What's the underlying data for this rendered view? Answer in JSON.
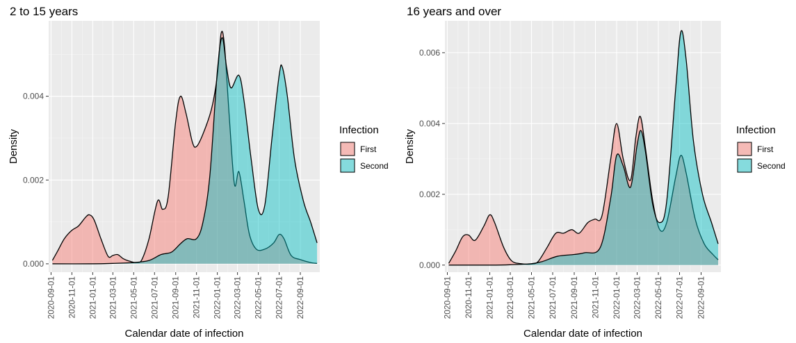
{
  "legend": {
    "title": "Infection",
    "items": [
      {
        "label": "First",
        "color": "#F8766D"
      },
      {
        "label": "Second",
        "color": "#00BFC4"
      }
    ]
  },
  "chart_data": [
    {
      "type": "area",
      "title": "2 to 15 years",
      "xlabel": "Calendar date of infection",
      "ylabel": "Density",
      "x_ticks": [
        "2020-09-01",
        "2020-11-01",
        "2021-01-01",
        "2021-03-01",
        "2021-05-01",
        "2021-07-01",
        "2021-09-01",
        "2021-11-01",
        "2022-01-01",
        "2022-03-01",
        "2022-05-01",
        "2022-07-01",
        "2022-09-01"
      ],
      "y_ticks": [
        "0.000",
        "0.002",
        "0.004"
      ],
      "xlim": [
        "2020-08-25",
        "2022-10-28"
      ],
      "ylim": [
        -0.0002,
        0.0058
      ],
      "y_tick_values": [
        0,
        0.002,
        0.004
      ],
      "grid": true,
      "legend_position": "right",
      "series": [
        {
          "name": "First",
          "color": "#F8766D",
          "points": [
            [
              "2020-09-05",
              8e-05
            ],
            [
              "2020-09-20",
              0.0003
            ],
            [
              "2020-10-10",
              0.0006
            ],
            [
              "2020-11-01",
              0.0008
            ],
            [
              "2020-11-20",
              0.0009
            ],
            [
              "2020-12-10",
              0.0011
            ],
            [
              "2020-12-22",
              0.00117
            ],
            [
              "2021-01-05",
              0.00105
            ],
            [
              "2021-01-25",
              0.0006
            ],
            [
              "2021-02-15",
              0.00018
            ],
            [
              "2021-03-01",
              0.0002
            ],
            [
              "2021-03-15",
              0.00022
            ],
            [
              "2021-04-01",
              0.00012
            ],
            [
              "2021-04-20",
              6e-05
            ],
            [
              "2021-05-10",
              3e-05
            ],
            [
              "2021-05-25",
              0.0001
            ],
            [
              "2021-06-15",
              0.0006
            ],
            [
              "2021-07-10",
              0.0015
            ],
            [
              "2021-07-25",
              0.0013
            ],
            [
              "2021-08-10",
              0.0016
            ],
            [
              "2021-09-01",
              0.0034
            ],
            [
              "2021-09-15",
              0.004
            ],
            [
              "2021-10-01",
              0.0036
            ],
            [
              "2021-10-20",
              0.0029
            ],
            [
              "2021-11-01",
              0.0028
            ],
            [
              "2021-11-20",
              0.0031
            ],
            [
              "2021-12-15",
              0.0037
            ],
            [
              "2022-01-01",
              0.0045
            ],
            [
              "2022-01-12",
              0.0055
            ],
            [
              "2022-01-22",
              0.0052
            ],
            [
              "2022-02-05",
              0.0035
            ],
            [
              "2022-02-20",
              0.0019
            ],
            [
              "2022-03-05",
              0.0022
            ],
            [
              "2022-03-20",
              0.0015
            ],
            [
              "2022-04-05",
              0.0007
            ],
            [
              "2022-04-25",
              0.00035
            ],
            [
              "2022-05-20",
              0.00035
            ],
            [
              "2022-06-15",
              0.0005
            ],
            [
              "2022-07-01",
              0.0007
            ],
            [
              "2022-07-15",
              0.0006
            ],
            [
              "2022-08-05",
              0.0002
            ],
            [
              "2022-09-01",
              0.0001
            ],
            [
              "2022-10-01",
              3e-05
            ],
            [
              "2022-10-20",
              1e-05
            ]
          ]
        },
        {
          "name": "Second",
          "color": "#00BFC4",
          "points": [
            [
              "2020-09-05",
              0
            ],
            [
              "2021-01-01",
              0
            ],
            [
              "2021-03-01",
              1e-05
            ],
            [
              "2021-05-01",
              3e-05
            ],
            [
              "2021-06-15",
              8e-05
            ],
            [
              "2021-07-20",
              0.00022
            ],
            [
              "2021-08-20",
              0.00028
            ],
            [
              "2021-09-15",
              0.00048
            ],
            [
              "2021-10-05",
              0.0006
            ],
            [
              "2021-11-01",
              0.0006
            ],
            [
              "2021-11-20",
              0.001
            ],
            [
              "2021-12-10",
              0.0021
            ],
            [
              "2022-01-01",
              0.0046
            ],
            [
              "2022-01-15",
              0.0054
            ],
            [
              "2022-01-28",
              0.0047
            ],
            [
              "2022-02-10",
              0.0042
            ],
            [
              "2022-03-05",
              0.0045
            ],
            [
              "2022-03-20",
              0.0039
            ],
            [
              "2022-04-10",
              0.0025
            ],
            [
              "2022-05-01",
              0.0013
            ],
            [
              "2022-05-20",
              0.0014
            ],
            [
              "2022-06-10",
              0.003
            ],
            [
              "2022-07-01",
              0.0045
            ],
            [
              "2022-07-10",
              0.0047
            ],
            [
              "2022-07-25",
              0.004
            ],
            [
              "2022-08-15",
              0.0025
            ],
            [
              "2022-09-10",
              0.0015
            ],
            [
              "2022-10-01",
              0.001
            ],
            [
              "2022-10-20",
              0.0005
            ]
          ]
        }
      ]
    },
    {
      "type": "area",
      "title": "16 years and over",
      "xlabel": "Calendar date of infection",
      "ylabel": "Density",
      "x_ticks": [
        "2020-09-01",
        "2020-11-01",
        "2021-01-01",
        "2021-03-01",
        "2021-05-01",
        "2021-07-01",
        "2021-09-01",
        "2021-11-01",
        "2022-01-01",
        "2022-03-01",
        "2022-05-01",
        "2022-07-01",
        "2022-09-01"
      ],
      "y_ticks": [
        "0.000",
        "0.002",
        "0.004",
        "0.006"
      ],
      "xlim": [
        "2020-08-25",
        "2022-10-28"
      ],
      "ylim": [
        -0.0002,
        0.0069
      ],
      "y_tick_values": [
        0,
        0.002,
        0.004,
        0.006
      ],
      "grid": true,
      "legend_position": "right",
      "series": [
        {
          "name": "First",
          "color": "#F8766D",
          "points": [
            [
              "2020-09-05",
              5e-05
            ],
            [
              "2020-09-25",
              0.0004
            ],
            [
              "2020-10-15",
              0.0008
            ],
            [
              "2020-11-01",
              0.00085
            ],
            [
              "2020-11-20",
              0.0007
            ],
            [
              "2020-12-15",
              0.0011
            ],
            [
              "2021-01-01",
              0.00142
            ],
            [
              "2021-01-15",
              0.0012
            ],
            [
              "2021-02-10",
              0.0005
            ],
            [
              "2021-03-05",
              0.00012
            ],
            [
              "2021-04-01",
              4e-05
            ],
            [
              "2021-05-01",
              3e-05
            ],
            [
              "2021-05-20",
              0.0001
            ],
            [
              "2021-06-15",
              0.0005
            ],
            [
              "2021-07-10",
              0.0009
            ],
            [
              "2021-08-01",
              0.0009
            ],
            [
              "2021-08-25",
              0.001
            ],
            [
              "2021-09-15",
              0.0009
            ],
            [
              "2021-10-10",
              0.0012
            ],
            [
              "2021-10-30",
              0.0013
            ],
            [
              "2021-11-20",
              0.0014
            ],
            [
              "2021-12-15",
              0.003
            ],
            [
              "2022-01-01",
              0.004
            ],
            [
              "2022-01-20",
              0.003
            ],
            [
              "2022-02-10",
              0.0024
            ],
            [
              "2022-02-25",
              0.0036
            ],
            [
              "2022-03-10",
              0.0042
            ],
            [
              "2022-03-25",
              0.0033
            ],
            [
              "2022-04-15",
              0.0018
            ],
            [
              "2022-05-05",
              0.001
            ],
            [
              "2022-05-25",
              0.0012
            ],
            [
              "2022-06-20",
              0.0025
            ],
            [
              "2022-07-05",
              0.0031
            ],
            [
              "2022-07-20",
              0.0026
            ],
            [
              "2022-08-15",
              0.0013
            ],
            [
              "2022-09-10",
              0.0006
            ],
            [
              "2022-10-05",
              0.0003
            ],
            [
              "2022-10-20",
              0.00015
            ]
          ]
        },
        {
          "name": "Second",
          "color": "#00BFC4",
          "points": [
            [
              "2020-09-05",
              0
            ],
            [
              "2021-01-01",
              0
            ],
            [
              "2021-03-01",
              1e-05
            ],
            [
              "2021-05-01",
              4e-05
            ],
            [
              "2021-06-01",
              0.0001
            ],
            [
              "2021-07-15",
              0.00025
            ],
            [
              "2021-09-01",
              0.0003
            ],
            [
              "2021-10-01",
              0.00035
            ],
            [
              "2021-11-15",
              0.0005
            ],
            [
              "2021-12-15",
              0.0019
            ],
            [
              "2022-01-01",
              0.0031
            ],
            [
              "2022-01-20",
              0.0028
            ],
            [
              "2022-02-10",
              0.0022
            ],
            [
              "2022-03-01",
              0.0034
            ],
            [
              "2022-03-12",
              0.0038
            ],
            [
              "2022-03-25",
              0.0032
            ],
            [
              "2022-04-15",
              0.0017
            ],
            [
              "2022-05-05",
              0.0012
            ],
            [
              "2022-05-25",
              0.0018
            ],
            [
              "2022-06-20",
              0.005
            ],
            [
              "2022-07-05",
              0.0066
            ],
            [
              "2022-07-20",
              0.0058
            ],
            [
              "2022-08-10",
              0.0035
            ],
            [
              "2022-09-05",
              0.002
            ],
            [
              "2022-10-01",
              0.0012
            ],
            [
              "2022-10-20",
              0.0006
            ]
          ]
        }
      ]
    }
  ]
}
